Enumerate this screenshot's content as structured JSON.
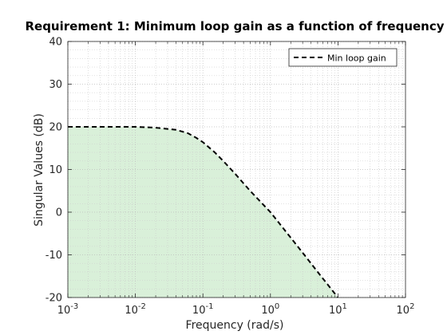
{
  "chart_data": {
    "type": "line",
    "title": "Requirement 1: Minimum loop gain as a function of frequency",
    "xlabel": "Frequency (rad/s)",
    "ylabel": "Singular Values (dB)",
    "xscale": "log",
    "xlim": [
      0.001,
      100
    ],
    "ylim": [
      -20,
      40
    ],
    "xticks": [
      0.001,
      0.01,
      0.1,
      1,
      10,
      100
    ],
    "xtick_labels": [
      {
        "base": "10",
        "exp": "-3"
      },
      {
        "base": "10",
        "exp": "-2"
      },
      {
        "base": "10",
        "exp": "-1"
      },
      {
        "base": "10",
        "exp": "0"
      },
      {
        "base": "10",
        "exp": "1"
      },
      {
        "base": "10",
        "exp": "2"
      }
    ],
    "yticks": [
      -20,
      -10,
      0,
      10,
      20,
      30,
      40
    ],
    "ytick_labels": [
      "-20",
      "-10",
      "0",
      "10",
      "20",
      "30",
      "40"
    ],
    "grid": "minor dotted",
    "legend_position": "top-right",
    "series": [
      {
        "name": "Min loop gain",
        "style": "dashed",
        "color": "#000000",
        "shaded_below": true,
        "shade_color": "#d9f0d9",
        "x": [
          0.001,
          0.003,
          0.01,
          0.02,
          0.04,
          0.06,
          0.08,
          0.1,
          0.15,
          0.2,
          0.3,
          0.5,
          1,
          2,
          3,
          5,
          10
        ],
        "y": [
          20,
          20,
          20,
          19.8,
          19.3,
          18.5,
          17.4,
          16.4,
          14,
          12,
          9,
          5,
          0,
          -6,
          -9.5,
          -14,
          -20
        ]
      }
    ]
  }
}
